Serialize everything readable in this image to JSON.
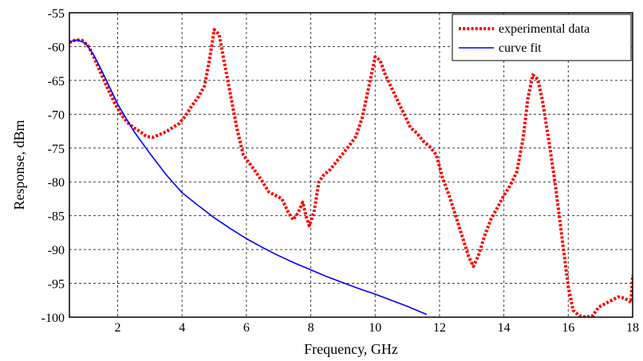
{
  "chart_data": {
    "type": "line",
    "title": "",
    "xlabel": "Frequency, GHz",
    "ylabel": "Response, dBm",
    "xlim": [
      0.5,
      18
    ],
    "ylim": [
      -100,
      -55
    ],
    "xticks": [
      2,
      4,
      6,
      8,
      10,
      12,
      14,
      16,
      18
    ],
    "yticks": [
      -55,
      -60,
      -65,
      -70,
      -75,
      -80,
      -85,
      -90,
      -95,
      -100
    ],
    "grid": true,
    "legend_position": "top-right",
    "series": [
      {
        "name": "experimental data",
        "style": "dotted",
        "color": "#ff0000",
        "points": [
          [
            0.5,
            -59.4
          ],
          [
            0.7,
            -59.0
          ],
          [
            0.9,
            -59.1
          ],
          [
            1.1,
            -60.0
          ],
          [
            1.3,
            -62.0
          ],
          [
            1.5,
            -64.2
          ],
          [
            1.7,
            -66.3
          ],
          [
            1.9,
            -68.3
          ],
          [
            2.1,
            -70.0
          ],
          [
            2.3,
            -71.2
          ],
          [
            2.5,
            -72.0
          ],
          [
            2.7,
            -72.6
          ],
          [
            2.9,
            -73.3
          ],
          [
            3.1,
            -73.4
          ],
          [
            3.3,
            -73.0
          ],
          [
            3.5,
            -72.6
          ],
          [
            3.7,
            -72.0
          ],
          [
            3.9,
            -71.4
          ],
          [
            4.1,
            -70.3
          ],
          [
            4.3,
            -68.8
          ],
          [
            4.5,
            -67.5
          ],
          [
            4.7,
            -65.8
          ],
          [
            4.85,
            -62.0
          ],
          [
            5.0,
            -57.5
          ],
          [
            5.15,
            -58.2
          ],
          [
            5.3,
            -62.0
          ],
          [
            5.5,
            -67.0
          ],
          [
            5.7,
            -72.0
          ],
          [
            5.9,
            -76.0
          ],
          [
            6.1,
            -77.3
          ],
          [
            6.3,
            -78.6
          ],
          [
            6.5,
            -80.0
          ],
          [
            6.7,
            -81.5
          ],
          [
            6.9,
            -82.0
          ],
          [
            7.1,
            -82.5
          ],
          [
            7.3,
            -84.5
          ],
          [
            7.45,
            -85.6
          ],
          [
            7.6,
            -84.6
          ],
          [
            7.75,
            -83.0
          ],
          [
            7.85,
            -85.0
          ],
          [
            7.95,
            -86.5
          ],
          [
            8.1,
            -84.5
          ],
          [
            8.25,
            -80.0
          ],
          [
            8.4,
            -79.0
          ],
          [
            8.6,
            -78.2
          ],
          [
            8.8,
            -77.0
          ],
          [
            9.0,
            -75.8
          ],
          [
            9.2,
            -74.6
          ],
          [
            9.4,
            -73.3
          ],
          [
            9.6,
            -70.5
          ],
          [
            9.8,
            -66.0
          ],
          [
            10.0,
            -61.5
          ],
          [
            10.15,
            -62.0
          ],
          [
            10.3,
            -64.0
          ],
          [
            10.5,
            -66.0
          ],
          [
            10.7,
            -68.0
          ],
          [
            10.9,
            -70.0
          ],
          [
            11.1,
            -72.0
          ],
          [
            11.3,
            -72.8
          ],
          [
            11.5,
            -74.0
          ],
          [
            11.7,
            -74.8
          ],
          [
            11.9,
            -76.0
          ],
          [
            12.1,
            -79.5
          ],
          [
            12.3,
            -82.0
          ],
          [
            12.5,
            -85.0
          ],
          [
            12.7,
            -88.0
          ],
          [
            12.9,
            -91.0
          ],
          [
            13.05,
            -92.5
          ],
          [
            13.2,
            -91.0
          ],
          [
            13.4,
            -88.0
          ],
          [
            13.6,
            -85.5
          ],
          [
            13.8,
            -83.8
          ],
          [
            14.0,
            -82.0
          ],
          [
            14.2,
            -80.5
          ],
          [
            14.4,
            -78.5
          ],
          [
            14.6,
            -73.5
          ],
          [
            14.75,
            -67.5
          ],
          [
            14.9,
            -64.2
          ],
          [
            15.05,
            -64.8
          ],
          [
            15.2,
            -68.0
          ],
          [
            15.4,
            -74.0
          ],
          [
            15.6,
            -80.5
          ],
          [
            15.8,
            -88.0
          ],
          [
            16.0,
            -95.5
          ],
          [
            16.15,
            -99.0
          ],
          [
            16.35,
            -99.8
          ],
          [
            16.55,
            -100.0
          ],
          [
            16.75,
            -99.8
          ],
          [
            16.95,
            -98.5
          ],
          [
            17.15,
            -98.0
          ],
          [
            17.35,
            -97.5
          ],
          [
            17.55,
            -97.0
          ],
          [
            17.75,
            -97.2
          ],
          [
            17.95,
            -97.8
          ],
          [
            18.0,
            -93.8
          ]
        ]
      },
      {
        "name": "curve fit",
        "style": "solid",
        "color": "#0000ff",
        "points": [
          [
            0.5,
            -59.3
          ],
          [
            0.75,
            -59.0
          ],
          [
            1.0,
            -59.5
          ],
          [
            1.25,
            -61.2
          ],
          [
            1.5,
            -63.5
          ],
          [
            1.75,
            -66.0
          ],
          [
            2.0,
            -68.5
          ],
          [
            2.25,
            -70.5
          ],
          [
            2.5,
            -72.5
          ],
          [
            3.0,
            -75.8
          ],
          [
            3.5,
            -78.9
          ],
          [
            4.0,
            -81.6
          ],
          [
            4.5,
            -83.5
          ],
          [
            5.0,
            -85.3
          ],
          [
            5.5,
            -86.9
          ],
          [
            6.0,
            -88.4
          ],
          [
            6.5,
            -89.7
          ],
          [
            7.0,
            -90.9
          ],
          [
            7.5,
            -92.0
          ],
          [
            8.0,
            -93.0
          ],
          [
            8.5,
            -94.0
          ],
          [
            9.0,
            -94.9
          ],
          [
            9.5,
            -95.8
          ],
          [
            10.0,
            -96.6
          ],
          [
            10.5,
            -97.5
          ],
          [
            11.0,
            -98.4
          ],
          [
            11.6,
            -99.6
          ]
        ]
      }
    ]
  }
}
